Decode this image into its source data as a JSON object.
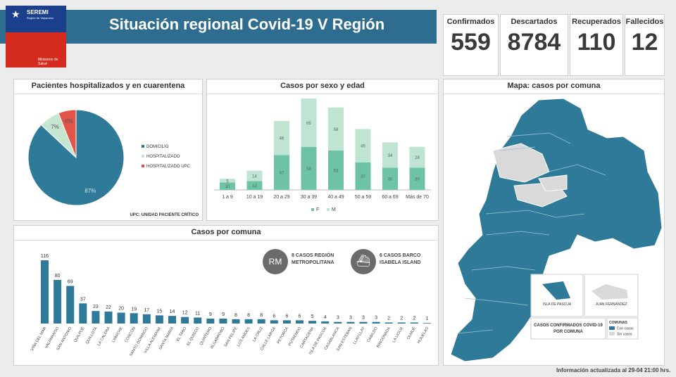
{
  "header": {
    "title": "Situación regional Covid-19 V Región",
    "logo": {
      "name": "SEREMI",
      "subtitle": "Región de Valparaíso",
      "ministry": "Ministerio de Salud"
    }
  },
  "stats": [
    {
      "label": "Confirmados",
      "value": "559"
    },
    {
      "label": "Descartados",
      "value": "8784"
    },
    {
      "label": "Recuperados",
      "value": "110"
    },
    {
      "label": "Fallecidos",
      "value": "12"
    }
  ],
  "panels": {
    "pie_title": "Pacientes hospitalizados  y en cuarentena",
    "sexage_title": "Casos por sexo y edad",
    "map_title": "Mapa: casos por comuna",
    "comuna_title": "Casos por comuna"
  },
  "pie_note": "UPC: UNIDAD PACIENTE CRÍTICO",
  "rm_badge": {
    "icon": "RM",
    "text": "8 CASOS REGIÓN METROPOLITANA"
  },
  "ship_badge": {
    "icon": "ship-icon",
    "text": "6 CASOS BARCO ISABELA ISLAND"
  },
  "map": {
    "legend_title": "CASOS CONFIRMADOS COVID-19 POR COMUNA",
    "legend_heading": "COMUNAS",
    "legend_items": [
      {
        "label": "Con casos",
        "color": "#2f7a98"
      },
      {
        "label": "Sin casos",
        "color": "#d9d9d9"
      }
    ],
    "inset1": "ISLA DE PASCUA",
    "inset2": "JUAN FERNÁNDEZ"
  },
  "footer": "Información  actualizada al 29-04 21:00 hrs.",
  "colors": {
    "primary": "#2f7a98",
    "f": "#6fc3a5",
    "m": "#bfe5d2",
    "red": "#e05547"
  },
  "chart_data": [
    {
      "type": "pie",
      "labels": [
        "DOMICILIO",
        "HOSPITALIZADO",
        "HOSPITALIZADO UPC"
      ],
      "values": [
        87,
        7,
        6
      ],
      "value_labels": [
        "87%",
        "7%",
        "6%"
      ],
      "colors": [
        "#2f7a98",
        "#c6e6d2",
        "#e05547"
      ]
    },
    {
      "type": "bar",
      "stacked": true,
      "categories": [
        "1 a 9",
        "10 a 19",
        "20 a 29",
        "30 a 39",
        "40 a 49",
        "50 a 59",
        "60 a 69",
        "Más de 70"
      ],
      "series": [
        {
          "name": "F",
          "values": [
            10,
            12,
            47,
            58,
            53,
            37,
            30,
            30
          ],
          "color": "#6fc3a5"
        },
        {
          "name": "M",
          "values": [
            5,
            14,
            46,
            65,
            58,
            45,
            34,
            28
          ],
          "color": "#bfe5d2"
        }
      ],
      "ylim": [
        0,
        125
      ]
    },
    {
      "type": "bar",
      "categories": [
        "VIÑA DEL MAR",
        "VALPARAÍSO",
        "SAN ANTONIO",
        "QUILPUÉ",
        "QUILLOTA",
        "LA CALERA",
        "LIMACHE",
        "CONCÓN",
        "SANTO DOMINGO",
        "VILLA ALEMANA",
        "SANTA MARÍA",
        "EL TABO",
        "EL QUISCO",
        "QUINTERO",
        "ALGARROBO",
        "SAN FELIPE",
        "LOS ANDES",
        "LA CRUZ",
        "CALLE LARGA",
        "PETORCA",
        "PUTAENDO",
        "CARTAGENA",
        "ISLA DE PASCUA",
        "CASABLANCA",
        "SAN ESTEBAN",
        "LLAY-LLAY",
        "CABILDO",
        "RINCONADA",
        "LA LIGUA",
        "OLMUÉ",
        "HIJUELAS"
      ],
      "values": [
        116,
        80,
        69,
        37,
        23,
        22,
        20,
        19,
        17,
        15,
        14,
        12,
        11,
        9,
        9,
        8,
        8,
        8,
        6,
        6,
        6,
        5,
        4,
        3,
        3,
        3,
        3,
        2,
        2,
        2,
        1
      ],
      "ylim": [
        0,
        120
      ]
    }
  ]
}
